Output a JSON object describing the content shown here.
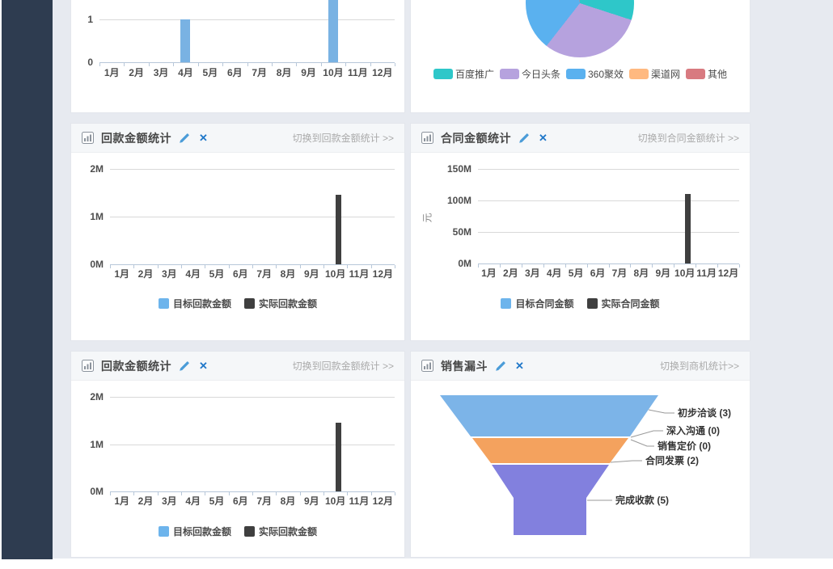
{
  "colors": {
    "background": "#e7eaf0",
    "sidebar": "#2e3c50",
    "panel_bg": "#ffffff",
    "panel_header_bg": "#f5f7f9",
    "axis_line": "#b7c7d9",
    "gridline": "#d9d9d9",
    "edit_icon": "#4b9cd8",
    "close_icon": "#2178c9",
    "link_text": "#aaaaaa"
  },
  "icons": {
    "panel_icon": "bar-chart",
    "edit_icon": "pencil",
    "close_glyph": "✕"
  },
  "panels": {
    "payments_mid": {
      "title": "回款金额统计",
      "switch_link": "切换到回款金额统计 >>"
    },
    "contracts": {
      "title": "合同金额统计",
      "switch_link": "切换到合同金额统计 >>"
    },
    "payments_bottom": {
      "title": "回款金额统计",
      "switch_link": "切换到回款金额统计 >>"
    },
    "funnel": {
      "title": "销售漏斗",
      "switch_link": "切换到商机统计>>"
    }
  },
  "chart_data": [
    {
      "id": "top_bar",
      "type": "bar",
      "categories": [
        "1月",
        "2月",
        "3月",
        "4月",
        "5月",
        "6月",
        "7月",
        "8月",
        "9月",
        "10月",
        "11月",
        "12月"
      ],
      "values": [
        0,
        0,
        0,
        1,
        0,
        0,
        0,
        0,
        0,
        2,
        0,
        0
      ],
      "bar_color": "#79b2e3",
      "yticks": [
        {
          "label": "0",
          "value": 0
        },
        {
          "label": "1",
          "value": 1
        }
      ],
      "ylim": [
        0,
        2
      ],
      "grid": true
    },
    {
      "id": "source_pie",
      "type": "pie",
      "slices": [
        {
          "name": "渠道网",
          "color": "#ffb980",
          "start_deg": 357,
          "end_deg": 363,
          "percent_est": 2
        },
        {
          "name": "百度推广",
          "color": "#2ec7c9",
          "start_deg": 3,
          "end_deg": 108,
          "percent_est": 29
        },
        {
          "name": "今日头条",
          "color": "#b6a2de",
          "start_deg": 108,
          "end_deg": 218,
          "percent_est": 31
        },
        {
          "name": "360聚效",
          "color": "#5ab1ef",
          "start_deg": 218,
          "end_deg": 351,
          "percent_est": 36
        },
        {
          "name": "其他",
          "color": "#d87a80",
          "start_deg": 351,
          "end_deg": 357,
          "percent_est": 2
        }
      ],
      "legend": [
        {
          "label": "百度推广",
          "color": "#2ec7c9"
        },
        {
          "label": "今日头条",
          "color": "#b6a2de"
        },
        {
          "label": "360聚效",
          "color": "#5ab1ef"
        },
        {
          "label": "渠道网",
          "color": "#ffb980"
        },
        {
          "label": "其他",
          "color": "#d87a80"
        }
      ],
      "legend_position": "bottom"
    },
    {
      "id": "payments_mid",
      "type": "bar",
      "categories": [
        "1月",
        "2月",
        "3月",
        "4月",
        "5月",
        "6月",
        "7月",
        "8月",
        "9月",
        "10月",
        "11月",
        "12月"
      ],
      "ylim": [
        0,
        2000000
      ],
      "yticks": [
        {
          "label": "0M",
          "value": 0
        },
        {
          "label": "1M",
          "value": 1000000
        },
        {
          "label": "2M",
          "value": 2000000
        }
      ],
      "series": [
        {
          "name": "目标回款金额",
          "color": "#6db4ec",
          "values": [
            0,
            0,
            0,
            0,
            0,
            0,
            0,
            0,
            0,
            0,
            0,
            0
          ]
        },
        {
          "name": "实际回款金额",
          "color": "#3f3f3f",
          "values": [
            0,
            0,
            0,
            0,
            0,
            0,
            0,
            0,
            0,
            1450000,
            0,
            0
          ]
        }
      ],
      "legend_position": "bottom",
      "grid": true
    },
    {
      "id": "contracts",
      "type": "bar",
      "ylabel": "元",
      "categories": [
        "1月",
        "2月",
        "3月",
        "4月",
        "5月",
        "6月",
        "7月",
        "8月",
        "9月",
        "10月",
        "11月",
        "12月"
      ],
      "ylim": [
        0,
        150000000
      ],
      "yticks": [
        {
          "label": "0M",
          "value": 0
        },
        {
          "label": "50M",
          "value": 50000000
        },
        {
          "label": "100M",
          "value": 100000000
        },
        {
          "label": "150M",
          "value": 150000000
        }
      ],
      "series": [
        {
          "name": "目标合同金额",
          "color": "#6db4ec",
          "values": [
            0,
            0,
            0,
            0,
            0,
            0,
            0,
            0,
            0,
            0,
            0,
            0
          ]
        },
        {
          "name": "实际合同金额",
          "color": "#3f3f3f",
          "values": [
            0,
            0,
            0,
            0,
            0,
            0,
            0,
            0,
            0,
            110000000,
            0,
            0
          ]
        }
      ],
      "legend_position": "bottom",
      "grid": true
    },
    {
      "id": "payments_bottom",
      "type": "bar",
      "categories": [
        "1月",
        "2月",
        "3月",
        "4月",
        "5月",
        "6月",
        "7月",
        "8月",
        "9月",
        "10月",
        "11月",
        "12月"
      ],
      "ylim": [
        0,
        2000000
      ],
      "yticks": [
        {
          "label": "0M",
          "value": 0
        },
        {
          "label": "1M",
          "value": 1000000
        },
        {
          "label": "2M",
          "value": 2000000
        }
      ],
      "series": [
        {
          "name": "目标回款金额",
          "color": "#6db4ec",
          "values": [
            0,
            0,
            0,
            0,
            0,
            0,
            0,
            0,
            0,
            0,
            0,
            0
          ]
        },
        {
          "name": "实际回款金额",
          "color": "#3f3f3f",
          "values": [
            0,
            0,
            0,
            0,
            0,
            0,
            0,
            0,
            0,
            1450000,
            0,
            0
          ]
        }
      ],
      "legend_position": "bottom",
      "grid": true
    },
    {
      "id": "sales_funnel",
      "type": "funnel",
      "stages": [
        {
          "name": "初步洽谈",
          "count": 3,
          "label": "初步洽谈 (3)",
          "color": "#7cb4e8"
        },
        {
          "name": "深入沟通",
          "count": 0,
          "label": "深入沟通 (0)",
          "color": "#7cb4e8"
        },
        {
          "name": "销售定价",
          "count": 0,
          "label": "销售定价 (0)",
          "color": "#f4a25e"
        },
        {
          "name": "合同发票",
          "count": 2,
          "label": "合同发票 (2)",
          "color": "#f4a25e"
        },
        {
          "name": "完成收款",
          "count": 5,
          "label": "完成收款 (5)",
          "color": "#8280de"
        }
      ]
    }
  ]
}
